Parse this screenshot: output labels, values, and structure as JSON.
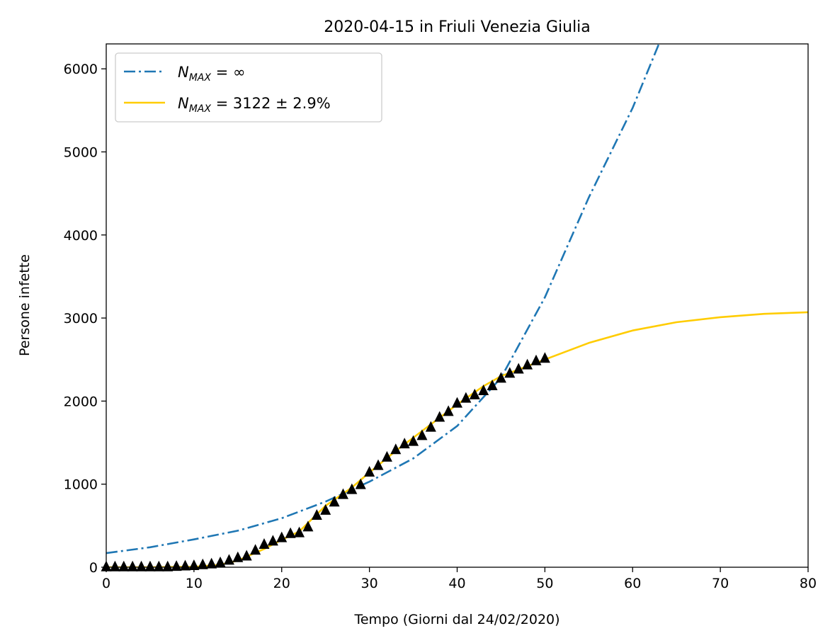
{
  "chart_data": {
    "type": "line",
    "title": "2020-04-15 in Friuli Venezia Giulia",
    "xlabel": "Tempo (Giorni dal 24/02/2020)",
    "ylabel": "Persone infette",
    "xlim": [
      0,
      80
    ],
    "ylim": [
      0,
      6300
    ],
    "xticks": [
      0,
      10,
      20,
      30,
      40,
      50,
      60,
      70,
      80
    ],
    "yticks": [
      0,
      1000,
      2000,
      3000,
      4000,
      5000,
      6000
    ],
    "grid": false,
    "legend_position": "top-left",
    "legend": [
      {
        "label_main": "N",
        "label_sub": "MAX",
        "label_rest": " = ∞",
        "color": "#1f77b4",
        "style": "dashdot"
      },
      {
        "label_main": "N",
        "label_sub": "MAX",
        "label_rest": " = 3122 ± 2.9%",
        "color": "#ffcc00",
        "style": "solid"
      }
    ],
    "series": [
      {
        "kind": "exponential_fit",
        "color": "#1f77b4",
        "style": "dashdot",
        "x": [
          0,
          5,
          10,
          15,
          20,
          25,
          30,
          35,
          40,
          45,
          50,
          55,
          60,
          63
        ],
        "y": [
          170,
          240,
          335,
          440,
          590,
          790,
          1030,
          1310,
          1700,
          2280,
          3250,
          4450,
          5530,
          6300
        ]
      },
      {
        "kind": "logistic_fit",
        "color": "#ffcc00",
        "style": "solid",
        "x": [
          0,
          5,
          10,
          13,
          15,
          18,
          20,
          22,
          25,
          28,
          30,
          33,
          35,
          38,
          40,
          43,
          45,
          48,
          50,
          55,
          60,
          65,
          70,
          75,
          80
        ],
        "y": [
          0,
          0,
          5,
          30,
          80,
          220,
          330,
          430,
          740,
          960,
          1140,
          1400,
          1560,
          1800,
          1960,
          2180,
          2300,
          2420,
          2500,
          2700,
          2850,
          2950,
          3010,
          3050,
          3070
        ]
      },
      {
        "kind": "observed",
        "color": "#000000",
        "marker": "triangle",
        "x": [
          0,
          1,
          2,
          3,
          4,
          5,
          6,
          7,
          8,
          9,
          10,
          11,
          12,
          13,
          14,
          15,
          16,
          17,
          18,
          19,
          20,
          21,
          22,
          23,
          24,
          25,
          26,
          27,
          28,
          29,
          30,
          31,
          32,
          33,
          34,
          35,
          36,
          37,
          38,
          39,
          40,
          41,
          42,
          43,
          44,
          45,
          46,
          47,
          48,
          49,
          50
        ],
        "y": [
          0,
          0,
          0,
          0,
          0,
          0,
          0,
          0,
          5,
          10,
          15,
          25,
          35,
          50,
          80,
          110,
          130,
          200,
          270,
          310,
          350,
          400,
          410,
          480,
          620,
          680,
          780,
          870,
          930,
          990,
          1140,
          1220,
          1320,
          1410,
          1480,
          1510,
          1580,
          1680,
          1800,
          1870,
          1970,
          2030,
          2070,
          2120,
          2180,
          2270,
          2330,
          2380,
          2430,
          2480,
          2510
        ]
      }
    ]
  }
}
